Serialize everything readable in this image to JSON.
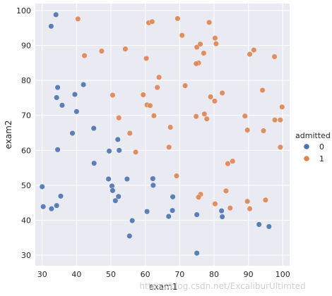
{
  "chart_data": {
    "type": "scatter",
    "xlabel": "exam1",
    "ylabel": "exam2",
    "xlim": [
      28,
      102
    ],
    "ylim": [
      27,
      102
    ],
    "xticks": [
      30,
      40,
      50,
      60,
      70,
      80,
      90,
      100
    ],
    "yticks": [
      30,
      40,
      50,
      60,
      70,
      80,
      90,
      100
    ],
    "grid": true,
    "legend": {
      "title": "admitted",
      "position": "right",
      "entries": [
        "0",
        "1"
      ]
    },
    "colors": {
      "0": "#4c72b0",
      "1": "#dd8452",
      "background": "#eaeaf2",
      "grid": "#ffffff"
    },
    "series": [
      {
        "name": "0",
        "points": [
          [
            34.0,
            98.8
          ],
          [
            32.6,
            95.5
          ],
          [
            34.5,
            78.0
          ],
          [
            42.0,
            78.8
          ],
          [
            34.2,
            75.1
          ],
          [
            39.5,
            76.0
          ],
          [
            35.8,
            72.9
          ],
          [
            40.0,
            71.1
          ],
          [
            45.0,
            66.3
          ],
          [
            38.8,
            64.9
          ],
          [
            52.0,
            63.1
          ],
          [
            52.4,
            60.0
          ],
          [
            49.5,
            59.8
          ],
          [
            34.5,
            60.2
          ],
          [
            45.1,
            56.3
          ],
          [
            54.7,
            51.8
          ],
          [
            62.2,
            51.9
          ],
          [
            62.3,
            50.0
          ],
          [
            49.3,
            51.8
          ],
          [
            50.3,
            49.8
          ],
          [
            50.5,
            48.5
          ],
          [
            30.0,
            49.6
          ],
          [
            35.4,
            46.9
          ],
          [
            52.2,
            46.8
          ],
          [
            51.3,
            45.6
          ],
          [
            68.0,
            46.7
          ],
          [
            30.3,
            43.9
          ],
          [
            32.7,
            43.3
          ],
          [
            34.2,
            44.2
          ],
          [
            60.5,
            42.5
          ],
          [
            67.9,
            42.8
          ],
          [
            56.2,
            39.9
          ],
          [
            66.8,
            41.1
          ],
          [
            75.0,
            41.6
          ],
          [
            82.2,
            42.7
          ],
          [
            82.4,
            41.0
          ],
          [
            55.4,
            35.5
          ],
          [
            93.1,
            38.8
          ],
          [
            96.0,
            38.2
          ],
          [
            75.0,
            30.6
          ]
        ]
      },
      {
        "name": "1",
        "points": [
          [
            40.4,
            97.6
          ],
          [
            61.0,
            96.5
          ],
          [
            62.0,
            96.8
          ],
          [
            69.4,
            97.7
          ],
          [
            78.6,
            96.6
          ],
          [
            70.7,
            92.9
          ],
          [
            80.3,
            92.1
          ],
          [
            80.6,
            90.5
          ],
          [
            75.0,
            89.5
          ],
          [
            76.0,
            90.4
          ],
          [
            54.2,
            89.0
          ],
          [
            47.3,
            88.4
          ],
          [
            42.3,
            87.1
          ],
          [
            60.3,
            86.3
          ],
          [
            77.0,
            87.8
          ],
          [
            75.5,
            85.0
          ],
          [
            74.8,
            84.8
          ],
          [
            90.4,
            87.5
          ],
          [
            91.6,
            88.7
          ],
          [
            97.6,
            86.8
          ],
          [
            64.0,
            80.9
          ],
          [
            63.5,
            78.0
          ],
          [
            71.6,
            78.5
          ],
          [
            50.5,
            75.8
          ],
          [
            59.4,
            75.9
          ],
          [
            79.0,
            75.3
          ],
          [
            80.2,
            74.1
          ],
          [
            82.4,
            76.4
          ],
          [
            94.1,
            77.2
          ],
          [
            60.5,
            73.0
          ],
          [
            61.4,
            72.8
          ],
          [
            52.3,
            69.3
          ],
          [
            62.5,
            69.9
          ],
          [
            74.8,
            69.7
          ],
          [
            77.2,
            70.4
          ],
          [
            77.9,
            69.0
          ],
          [
            89.0,
            69.8
          ],
          [
            97.7,
            68.7
          ],
          [
            99.3,
            68.7
          ],
          [
            99.8,
            72.4
          ],
          [
            55.5,
            64.9
          ],
          [
            67.3,
            66.6
          ],
          [
            89.7,
            65.8
          ],
          [
            94.4,
            65.6
          ],
          [
            57.2,
            59.5
          ],
          [
            66.9,
            60.9
          ],
          [
            99.3,
            60.9
          ],
          [
            85.4,
            56.9
          ],
          [
            84.0,
            56.2
          ],
          [
            69.1,
            52.7
          ],
          [
            83.5,
            48.4
          ],
          [
            76.1,
            47.4
          ],
          [
            75.5,
            46.6
          ],
          [
            89.7,
            45.4
          ],
          [
            95.0,
            45.8
          ],
          [
            80.3,
            44.7
          ],
          [
            84.7,
            43.5
          ],
          [
            90.4,
            43.3
          ]
        ]
      }
    ]
  },
  "watermark": "https://blog.csdn.net/ExcaliburUltimted"
}
